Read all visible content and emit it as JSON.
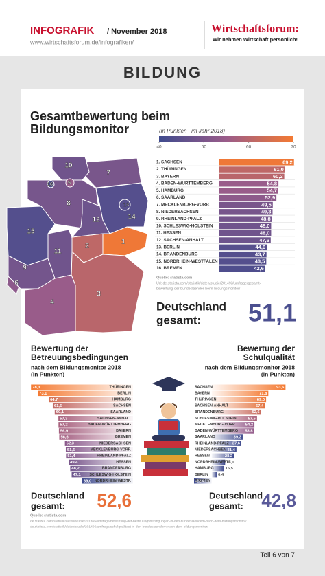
{
  "header": {
    "brand": "INFOGRAFIK",
    "date": "/ November 2018",
    "url": "www.wirtschaftsforum.de/infografiken/",
    "logo": "Wirtschaftsforum:",
    "slogan": "Wir nehmen Wirtschaft persönlich!"
  },
  "section": "BILDUNG",
  "chart_data": [
    {
      "type": "bar",
      "orientation": "horizontal",
      "title": [
        "Gesamtbewertung beim",
        "Bildungsmonitor"
      ],
      "subtitle": "(in Punkten , im Jahr 2018)",
      "categories": [
        "1. SACHSEN",
        "2. THÜRINGEN",
        "3. BAYERN",
        "4. BADEN-WÜRTTEMBERG",
        "5. HAMBURG",
        "6. SAARLAND",
        "7. MECKLENBURG-VORP.",
        "8. NIEDERSACHSEN",
        "9. RHEINLAND-PFALZ",
        "10. SCHLESWIG-HOLSTEIN",
        "11. HESSEN",
        "12. SACHSEN-ANHALT",
        "13. BERLIN",
        "14. BRANDENBURG",
        "15. NORDRHEIN-WESTFALEN",
        "16. BREMEN"
      ],
      "values": [
        69.2,
        61.0,
        60.2,
        54.8,
        54.7,
        52.9,
        49.5,
        49.3,
        48.8,
        48.0,
        48.0,
        47.6,
        44.0,
        43.7,
        43.5,
        42.6
      ],
      "value_labels": [
        "69,2",
        "61,0",
        "60,2",
        "54,8",
        "54,7",
        "52,9",
        "49,5",
        "49,3",
        "48,8",
        "48,0",
        "48,0",
        "47,6",
        "44,0",
        "43,7",
        "43,5",
        "42,6"
      ],
      "xlim": [
        0,
        70
      ],
      "colorscale": {
        "colors": [
          "#3f4b8e",
          "#9a5c8a",
          "#f47a32"
        ],
        "range": [
          40,
          70
        ],
        "ticks": [
          40,
          50,
          60,
          70
        ]
      },
      "map_labels": [
        "1",
        "2",
        "3",
        "4",
        "5",
        "6",
        "7",
        "8",
        "9",
        "10",
        "11",
        "12",
        "13",
        "14",
        "15",
        "16"
      ],
      "source": [
        "Quelle: statista.com",
        "Url: de.statista.com/statistik/daten/studie/201493/umfrage/gesamt-",
        "bewertung-der-bundeslaender-beim-bildungsmonitor/"
      ],
      "total_label": [
        "Deutschland",
        "gesamt:"
      ],
      "total": {
        "value": 51.1,
        "label": "51,1"
      }
    },
    {
      "type": "bar",
      "orientation": "horizontal",
      "direction": "left",
      "title": [
        "Bewertung der",
        "Betreuungsbedingungen"
      ],
      "subtitle": [
        "nach dem Bildungsmonitor 2018",
        "(in Punkten)"
      ],
      "categories": [
        "THÜRINGEN",
        "BERLIN",
        "HAMBURG",
        "SACHSEN",
        "SAARLAND",
        "SACHSEN-ANHALT",
        "BADEN-WÜRTTEMBERG",
        "BAYERN",
        "BREMEN",
        "NIEDERSACHSEN",
        "MECKLENBURG-VORP.",
        "RHEINLAND-PFALZ",
        "HESSEN",
        "BRANDENBURG",
        "SCHLESWIG-HOLSTEIN",
        "NORDRHEIN-WESTF."
      ],
      "values": [
        78.3,
        73.1,
        64.7,
        61.6,
        60.1,
        57.3,
        57.2,
        56.9,
        56.6,
        52.3,
        51.6,
        51.4,
        49.4,
        48.2,
        47.1,
        39.0
      ],
      "value_labels": [
        "78,3",
        "73,1",
        "64,7",
        "61,6",
        "60,1",
        "57,3",
        "57,2",
        "56,9",
        "56,6",
        "52,3",
        "51,6",
        "51,4",
        "49,4",
        "48,2",
        "47,1",
        "39,0"
      ],
      "xlim": [
        0,
        80
      ],
      "total_label": [
        "Deutschland",
        "gesamt:"
      ],
      "total": {
        "value": 52.6,
        "label": "52,6"
      }
    },
    {
      "type": "bar",
      "orientation": "horizontal",
      "direction": "right",
      "title": [
        "Bewertung der",
        "Schulqualität"
      ],
      "subtitle": [
        "nach dem Bildungsmonitor 2018",
        "(in Punkten)"
      ],
      "categories": [
        "SACHSEN",
        "BAYERN",
        "THÜRINGEN",
        "SACHSEN-ANHALT",
        "BRANDENBURG",
        "SCHLESWIG-HOLSTEIN",
        "MECKLENBURG-VORP.",
        "BADEN-WÜRTTEMBERG",
        "SAARLAND",
        "RHEINLAND-PFALZ",
        "NIEDERSACHSEN",
        "HESSEN",
        "NORDRHEIN-WESTF.",
        "HAMBURG",
        "BERLIN",
        "BREMEN"
      ],
      "values": [
        93.6,
        71.8,
        69.0,
        67.4,
        62.6,
        57.5,
        54.2,
        53.8,
        39.3,
        37.6,
        31.4,
        28.2,
        17.0,
        15.5,
        6.4,
        -22.4
      ],
      "value_labels": [
        "93,6",
        "71,8",
        "69,0",
        "67,4",
        "62,6",
        "57,5",
        "54,2",
        "53,8",
        "39,3",
        "37,6",
        "31,4",
        "28,2",
        "17,0",
        "15,5",
        "6,4",
        "-22,4"
      ],
      "xlim": [
        -25,
        95
      ],
      "total_label": [
        "Deutschland",
        "gesamt:"
      ],
      "total": {
        "value": 42.8,
        "label": "42,8"
      }
    }
  ],
  "footer": {
    "source": [
      "Quelle: statista.com",
      "de.statista.com/statistik/daten/studie/201495/umfrage/bewertung-der-betreuungsbedingungen-in-den-bundeslaendern-nach-dem-bildungsmonitor/",
      "de.statista.com/statistik/daten/studie/201496/umfrage/schulqualitaet-in-den-bundeslaendern-nach-dem-bildungsmonitor/"
    ],
    "page": "Teil 6 von 7"
  }
}
